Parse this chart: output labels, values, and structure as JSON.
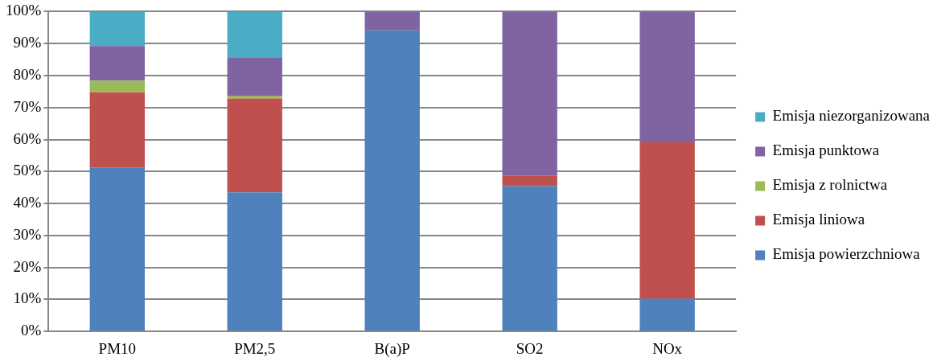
{
  "chart_data": {
    "type": "bar",
    "stacked": true,
    "categories": [
      "PM10",
      "PM2,5",
      "B(a)P",
      "SO2",
      "NOx"
    ],
    "series": [
      {
        "name": "Emisja powierzchniowa",
        "color": "#4f81bd",
        "values": [
          51.3,
          43.5,
          94.1,
          45.4,
          10.2
        ]
      },
      {
        "name": "Emisja liniowa",
        "color": "#c0504d",
        "values": [
          23.5,
          29.3,
          0,
          3.2,
          48.9
        ]
      },
      {
        "name": "Emisja z rolnictwa",
        "color": "#9bbb59",
        "values": [
          3.6,
          0.9,
          0,
          0,
          0
        ]
      },
      {
        "name": "Emisja punktowa",
        "color": "#8064a2",
        "values": [
          10.8,
          11.8,
          5.9,
          51.4,
          40.9
        ]
      },
      {
        "name": "Emisja niezorganizowana",
        "color": "#4bacc6",
        "values": [
          10.8,
          14.5,
          0,
          0,
          0
        ]
      }
    ],
    "ylim": [
      0,
      100
    ],
    "yticks": [
      {
        "value": 0,
        "label": "0%"
      },
      {
        "value": 10,
        "label": "10%"
      },
      {
        "value": 20,
        "label": "20%"
      },
      {
        "value": 30,
        "label": "30%"
      },
      {
        "value": 40,
        "label": "40%"
      },
      {
        "value": 50,
        "label": "50%"
      },
      {
        "value": 60,
        "label": "60%"
      },
      {
        "value": 70,
        "label": "70%"
      },
      {
        "value": 80,
        "label": "80%"
      },
      {
        "value": 90,
        "label": "90%"
      },
      {
        "value": 100,
        "label": "100%"
      }
    ],
    "grid": "y",
    "legend": "right"
  }
}
